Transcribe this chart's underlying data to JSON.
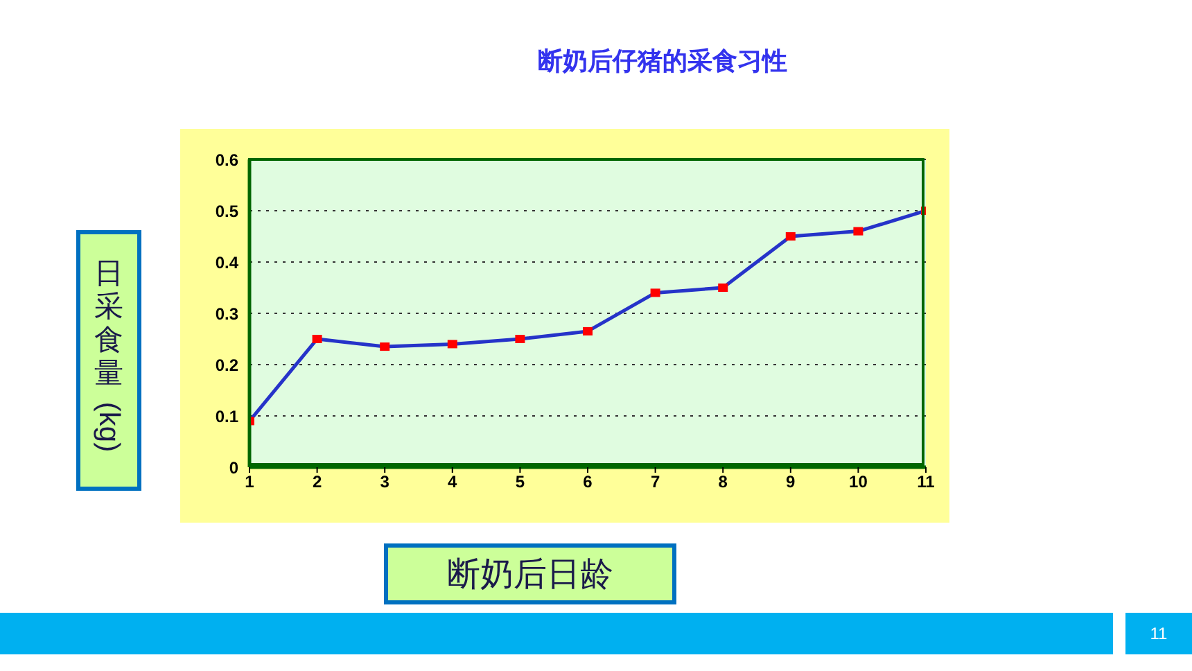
{
  "chart_data": {
    "type": "line",
    "title": "断奶后仔猪的采食习性",
    "xlabel": "断奶后日龄",
    "ylabel": "日采食量(kg)",
    "annotations": [
      "11"
    ],
    "x": [
      1,
      2,
      3,
      4,
      5,
      6,
      7,
      8,
      9,
      10,
      11
    ],
    "series": [
      {
        "color": "#2633c9",
        "values": [
          0.09,
          0.25,
          0.235,
          0.24,
          0.25,
          0.265,
          0.34,
          0.35,
          0.45,
          0.46,
          0.5
        ]
      }
    ],
    "xlim": [
      1,
      11
    ],
    "xticks": [
      1,
      2,
      3,
      4,
      5,
      6,
      7,
      8,
      9,
      10,
      11
    ],
    "ylim": [
      0,
      0.6
    ],
    "yticks": [
      0,
      0.1,
      0.2,
      0.3,
      0.4,
      0.5,
      0.6
    ],
    "grid": "y",
    "marker": "square",
    "line_style": "solid"
  }
}
